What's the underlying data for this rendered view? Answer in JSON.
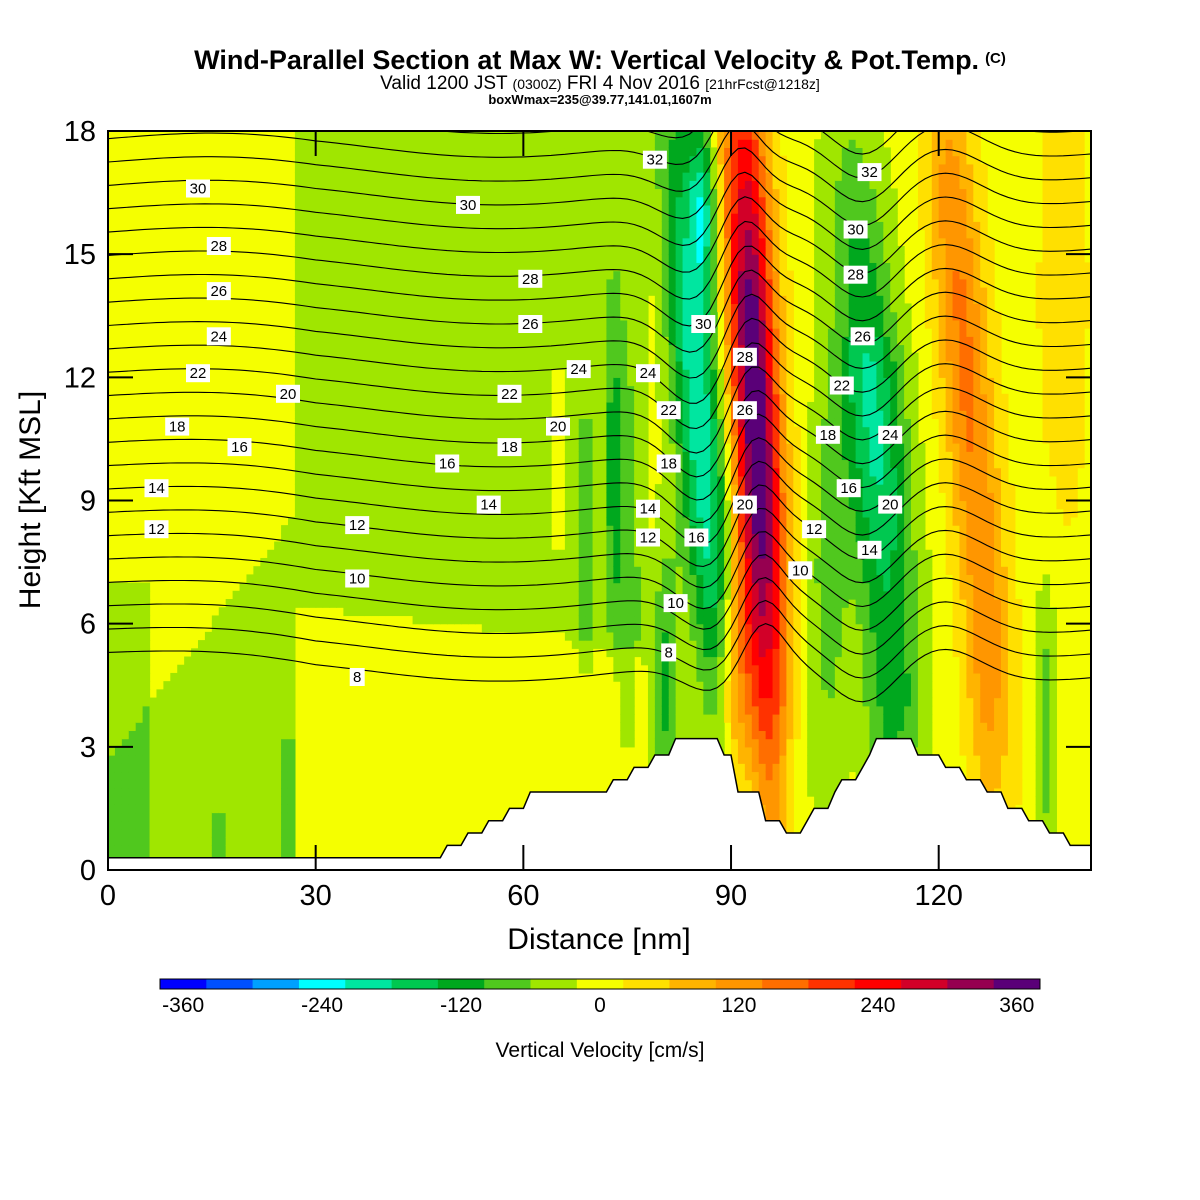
{
  "header": {
    "title": "Wind-Parallel Section at Max W: Vertical Velocity & Pot.Temp.",
    "copyright": "(C)",
    "valid_prefix": "Valid 1200 JST",
    "valid_utc": "(0300Z)",
    "valid_date": "FRI 4 Nov 2016",
    "forecast": "[21hrFcst@1218z]",
    "box_info": "boxWmax=235@39.77,141.01,1607m"
  },
  "chart_data": {
    "type": "heatmap",
    "title": "Wind-Parallel Section at Max W: Vertical Velocity & Pot.Temp.",
    "xlabel": "Distance [nm]",
    "ylabel": "Height [Kft MSL]",
    "xlim": [
      0,
      142
    ],
    "ylim": [
      0,
      18
    ],
    "x_ticks": [
      0,
      30,
      60,
      90,
      120
    ],
    "y_ticks": [
      0,
      3,
      6,
      9,
      12,
      15,
      18
    ],
    "colorbar": {
      "title": "Vertical Velocity [cm/s]",
      "tick_labels": [
        "-360",
        "-240",
        "-120",
        "0",
        "120",
        "240",
        "360"
      ],
      "tick_values": [
        -360,
        -240,
        -120,
        0,
        120,
        240,
        360
      ],
      "range": [
        -380,
        380
      ],
      "bin_width": 40,
      "colors": [
        "#0000ff",
        "#0050ff",
        "#00a0ff",
        "#00ffff",
        "#00e6a0",
        "#00c850",
        "#00a81e",
        "#50c81e",
        "#a0e600",
        "#f5ff00",
        "#ffe000",
        "#ffb400",
        "#ff9600",
        "#ff6e00",
        "#ff3200",
        "#ff0000",
        "#d20028",
        "#960050",
        "#5a0078"
      ]
    },
    "terrain": [
      [
        0,
        0.3
      ],
      [
        48,
        0.3
      ],
      [
        49,
        0.6
      ],
      [
        51,
        0.6
      ],
      [
        52,
        0.9
      ],
      [
        54,
        0.9
      ],
      [
        55,
        1.2
      ],
      [
        57,
        1.2
      ],
      [
        58,
        1.5
      ],
      [
        60,
        1.5
      ],
      [
        61,
        1.9
      ],
      [
        72,
        1.9
      ],
      [
        73,
        2.2
      ],
      [
        75,
        2.2
      ],
      [
        76,
        2.5
      ],
      [
        78,
        2.5
      ],
      [
        79,
        2.8
      ],
      [
        81,
        2.8
      ],
      [
        82,
        3.2
      ],
      [
        88,
        3.2
      ],
      [
        89,
        2.8
      ],
      [
        90,
        2.8
      ],
      [
        91,
        1.9
      ],
      [
        94,
        1.9
      ],
      [
        95,
        1.2
      ],
      [
        97,
        1.2
      ],
      [
        98,
        0.9
      ],
      [
        100,
        0.9
      ],
      [
        101,
        1.2
      ],
      [
        102,
        1.5
      ],
      [
        104,
        1.5
      ],
      [
        105,
        1.9
      ],
      [
        106,
        2.2
      ],
      [
        108,
        2.2
      ],
      [
        109,
        2.5
      ],
      [
        110,
        2.8
      ],
      [
        111,
        3.2
      ],
      [
        116,
        3.2
      ],
      [
        117,
        2.8
      ],
      [
        120,
        2.8
      ],
      [
        121,
        2.5
      ],
      [
        123,
        2.5
      ],
      [
        124,
        2.2
      ],
      [
        126,
        2.2
      ],
      [
        127,
        1.9
      ],
      [
        129,
        1.9
      ],
      [
        130,
        1.5
      ],
      [
        132,
        1.5
      ],
      [
        133,
        1.2
      ],
      [
        135,
        1.2
      ],
      [
        136,
        0.9
      ],
      [
        138,
        0.9
      ],
      [
        139,
        0.6
      ],
      [
        142,
        0.6
      ]
    ],
    "contour_labels": [
      {
        "text": "30",
        "x": 13,
        "y": 16.6
      },
      {
        "text": "30",
        "x": 52,
        "y": 16.2
      },
      {
        "text": "32",
        "x": 79,
        "y": 17.3
      },
      {
        "text": "32",
        "x": 110,
        "y": 17.0
      },
      {
        "text": "28",
        "x": 16,
        "y": 15.2
      },
      {
        "text": "28",
        "x": 61,
        "y": 14.4
      },
      {
        "text": "30",
        "x": 108,
        "y": 15.6
      },
      {
        "text": "26",
        "x": 16,
        "y": 14.1
      },
      {
        "text": "26",
        "x": 61,
        "y": 13.3
      },
      {
        "text": "28",
        "x": 108,
        "y": 14.5
      },
      {
        "text": "24",
        "x": 16,
        "y": 13.0
      },
      {
        "text": "30",
        "x": 86,
        "y": 13.3
      },
      {
        "text": "26",
        "x": 109,
        "y": 13.0
      },
      {
        "text": "22",
        "x": 13,
        "y": 12.1
      },
      {
        "text": "24",
        "x": 68,
        "y": 12.2
      },
      {
        "text": "24",
        "x": 78,
        "y": 12.1
      },
      {
        "text": "28",
        "x": 92,
        "y": 12.5
      },
      {
        "text": "20",
        "x": 26,
        "y": 11.6
      },
      {
        "text": "22",
        "x": 58,
        "y": 11.6
      },
      {
        "text": "22",
        "x": 106,
        "y": 11.8
      },
      {
        "text": "18",
        "x": 10,
        "y": 10.8
      },
      {
        "text": "20",
        "x": 65,
        "y": 10.8
      },
      {
        "text": "22",
        "x": 81,
        "y": 11.2
      },
      {
        "text": "26",
        "x": 92,
        "y": 11.2
      },
      {
        "text": "16",
        "x": 19,
        "y": 10.3
      },
      {
        "text": "18",
        "x": 58,
        "y": 10.3
      },
      {
        "text": "18",
        "x": 104,
        "y": 10.6
      },
      {
        "text": "24",
        "x": 113,
        "y": 10.6
      },
      {
        "text": "16",
        "x": 49,
        "y": 9.9
      },
      {
        "text": "18",
        "x": 81,
        "y": 9.9
      },
      {
        "text": "14",
        "x": 7,
        "y": 9.3
      },
      {
        "text": "14",
        "x": 55,
        "y": 8.9
      },
      {
        "text": "14",
        "x": 78,
        "y": 8.8
      },
      {
        "text": "16",
        "x": 107,
        "y": 9.3
      },
      {
        "text": "20",
        "x": 92,
        "y": 8.9
      },
      {
        "text": "20",
        "x": 113,
        "y": 8.9
      },
      {
        "text": "12",
        "x": 7,
        "y": 8.3
      },
      {
        "text": "12",
        "x": 36,
        "y": 8.4
      },
      {
        "text": "12",
        "x": 78,
        "y": 8.1
      },
      {
        "text": "16",
        "x": 85,
        "y": 8.1
      },
      {
        "text": "12",
        "x": 102,
        "y": 8.3
      },
      {
        "text": "14",
        "x": 110,
        "y": 7.8
      },
      {
        "text": "10",
        "x": 36,
        "y": 7.1
      },
      {
        "text": "10",
        "x": 100,
        "y": 7.3
      },
      {
        "text": "10",
        "x": 82,
        "y": 6.5
      },
      {
        "text": "8",
        "x": 81,
        "y": 5.3
      },
      {
        "text": "8",
        "x": 36,
        "y": 4.7
      }
    ]
  }
}
